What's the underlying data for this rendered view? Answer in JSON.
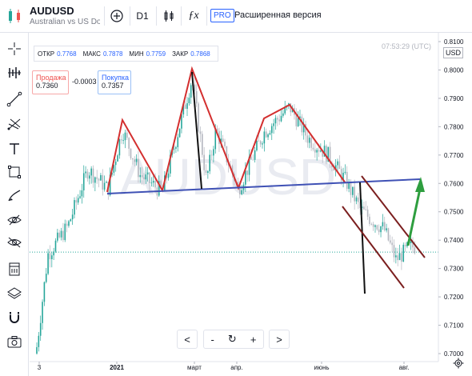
{
  "header": {
    "symbol": "AUDUSD",
    "description": "Australian vs US Dollar",
    "interval": "D1",
    "add_icon": "plus-circle-icon",
    "candles_icon": "candles-icon",
    "indicators_icon": "fx-icon",
    "pro_label": "PRO",
    "extended_label": "Расширенная версия"
  },
  "legend": {
    "open_label": "ОТКР",
    "open_value": "0.7768",
    "high_label": "МАКС",
    "high_value": "0.7878",
    "low_label": "МИН",
    "low_value": "0.7759",
    "close_label": "ЗАКР",
    "close_value": "0.7868"
  },
  "trade": {
    "sell_label": "Продажа",
    "sell_price": "0.7360",
    "spread": "-0.0003",
    "buy_label": "Покупка",
    "buy_price": "0.7357"
  },
  "clock": "07:53:29 (UTC)",
  "currency": "USD",
  "price_axis": [
    "0.8100",
    "0.8000",
    "0.7900",
    "0.7800",
    "0.7700",
    "0.7600",
    "0.7500",
    "0.7400",
    "0.7300",
    "0.7200",
    "0.7100",
    "0.7000"
  ],
  "time_axis": [
    "3",
    "2021",
    "март",
    "апр.",
    "июнь",
    "авг."
  ],
  "watermark": "AUDUSD",
  "tools": [
    "crosshair-icon",
    "indicator-lines-icon",
    "trend-line-icon",
    "fork-icon",
    "text-icon",
    "rectangle-icon",
    "brush-icon",
    "eye-icon",
    "hide-icon",
    "ruler-icon",
    "layers-icon",
    "magnet-icon",
    "camera-icon"
  ],
  "nav": {
    "back": "<",
    "zoom_out": "-",
    "reset": "↻",
    "zoom_in": "+",
    "forward": ">"
  },
  "colors": {
    "up": "#26a69a",
    "down": "#b2b5be",
    "pattern": "#d32f2f",
    "neckline": "#3f51b5",
    "channel": "#7b1f1f",
    "arrow": "#2e9e3f"
  }
}
